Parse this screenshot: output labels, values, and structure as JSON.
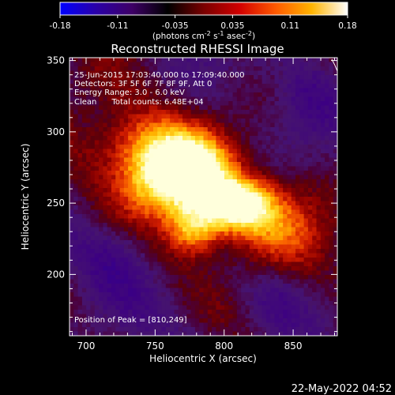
{
  "colorbar": {
    "ticks": [
      "-0.18",
      "-0.11",
      "-0.035",
      "0.035",
      "0.11",
      "0.18"
    ],
    "unit_label_parts": [
      "(photons cm",
      "-2",
      " s",
      "-1",
      " asec",
      "-2",
      ")"
    ],
    "gradient": [
      "#0000ff",
      "#2a00a8",
      "#3e0066",
      "#000000",
      "#7a0000",
      "#d20000",
      "#ff5a00",
      "#ffb400",
      "#ffffff"
    ]
  },
  "chart_data": {
    "type": "heatmap",
    "title": "Reconstructed RHESSI Image",
    "xlabel": "Heliocentric X (arcsec)",
    "ylabel": "Heliocentric Y (arcsec)",
    "x_ticks": [
      700,
      750,
      800,
      850
    ],
    "y_ticks": [
      200,
      250,
      300,
      350
    ],
    "xlim": [
      688,
      882
    ],
    "ylim": [
      157,
      352
    ],
    "value_range": [
      -0.18,
      0.18
    ],
    "peak": [
      810,
      249
    ],
    "sources": [
      {
        "x": 778,
        "y": 272,
        "sx": 18,
        "sy": 16,
        "amp": 0.16
      },
      {
        "x": 810,
        "y": 249,
        "sx": 16,
        "sy": 12,
        "amp": 0.18
      },
      {
        "x": 778,
        "y": 233,
        "sx": 14,
        "sy": 14,
        "amp": 0.16
      },
      {
        "x": 750,
        "y": 265,
        "sx": 18,
        "sy": 18,
        "amp": 0.12
      },
      {
        "x": 745,
        "y": 290,
        "sx": 30,
        "sy": 16,
        "amp": 0.08
      },
      {
        "x": 840,
        "y": 240,
        "sx": 25,
        "sy": 20,
        "amp": 0.06
      }
    ],
    "annotations": [
      "25-Jun-2015 17:03:40.000 to 17:09:40.000",
      "Detectors: 3F 5F 6F 7F 8F 9F, Att 0",
      "Energy Range: 3.0 - 6.0 keV",
      "Clean      Total counts: 6.48E+04"
    ],
    "peak_label": "Position of Peak = [810,249]"
  },
  "timestamp": "22-May-2022 04:52"
}
